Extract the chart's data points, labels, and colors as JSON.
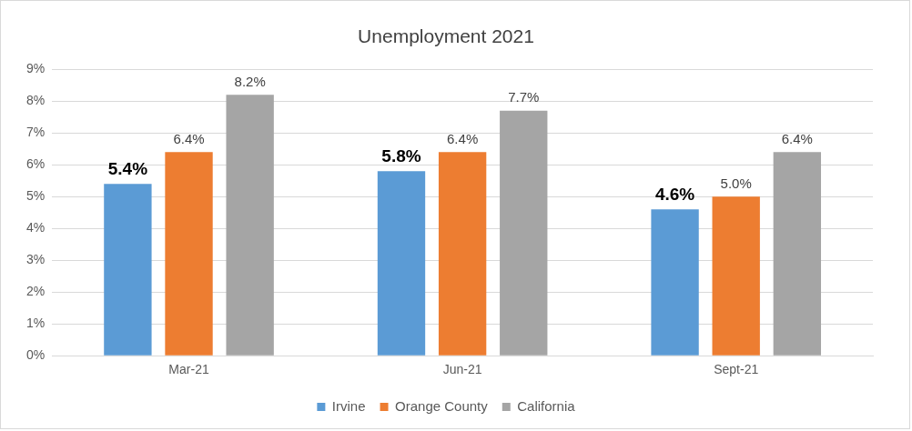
{
  "chart_data": {
    "type": "bar",
    "title": "Unemployment 2021",
    "categories": [
      "Mar-21",
      "Jun-21",
      "Sept-21"
    ],
    "series": [
      {
        "name": "Irvine",
        "color": "#5b9bd5",
        "values": [
          5.4,
          5.8,
          4.6
        ],
        "value_labels": [
          "5.4%",
          "5.8%",
          "4.6%"
        ]
      },
      {
        "name": "Orange County",
        "color": "#ed7d31",
        "values": [
          6.4,
          6.4,
          5.0
        ],
        "value_labels": [
          "6.4%",
          "6.4%",
          "5.0%"
        ]
      },
      {
        "name": "California",
        "color": "#a5a5a5",
        "values": [
          8.2,
          7.7,
          6.4
        ],
        "value_labels": [
          "8.2%",
          "7.7%",
          "6.4%"
        ]
      }
    ],
    "ylim": [
      0,
      9
    ],
    "yticks": [
      {
        "value": 0,
        "label": "0%"
      },
      {
        "value": 1,
        "label": "1%"
      },
      {
        "value": 2,
        "label": "2%"
      },
      {
        "value": 3,
        "label": "3%"
      },
      {
        "value": 4,
        "label": "4%"
      },
      {
        "value": 5,
        "label": "5%"
      },
      {
        "value": 6,
        "label": "6%"
      },
      {
        "value": 7,
        "label": "7%"
      },
      {
        "value": 8,
        "label": "8%"
      },
      {
        "value": 9,
        "label": "9%"
      }
    ],
    "grid": "y",
    "legend": "bottom"
  }
}
